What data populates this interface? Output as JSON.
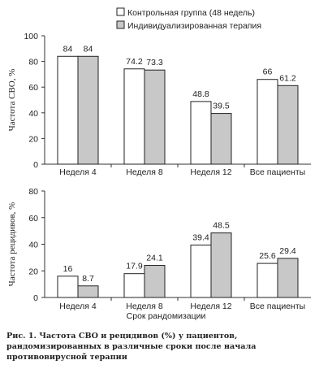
{
  "chart_data": [
    {
      "type": "bar",
      "categories": [
        "Неделя 4",
        "Неделя 8",
        "Неделя 12",
        "Все пациенты"
      ],
      "series": [
        {
          "name": "Контрольная группа (48 недель)",
          "values": [
            84,
            74.2,
            48.8,
            66
          ],
          "labels": [
            "84",
            "74.2",
            "48.8",
            "66"
          ],
          "color": "#ffffff"
        },
        {
          "name": "Индивидуализированная терапия",
          "values": [
            84,
            73.3,
            39.5,
            61.2
          ],
          "labels": [
            "84",
            "73.3",
            "39.5",
            "61.2"
          ],
          "color": "#c8c8c8"
        }
      ],
      "ylabel": "Частота СВО, %",
      "ylim": [
        0,
        100
      ],
      "yticks": [
        0,
        20,
        40,
        60,
        80,
        100
      ],
      "legend": "top-right"
    },
    {
      "type": "bar",
      "categories": [
        "Неделя 4",
        "Неделя 8",
        "Неделя 12",
        "Все пациенты"
      ],
      "series": [
        {
          "name": "Контрольная группа (48 недель)",
          "values": [
            16,
            17.9,
            39.4,
            25.6
          ],
          "labels": [
            "16",
            "17.9",
            "39.4",
            "25.6"
          ],
          "color": "#ffffff"
        },
        {
          "name": "Индивидуализированная терапия",
          "values": [
            8.7,
            24.1,
            48.5,
            29.4
          ],
          "labels": [
            "8.7",
            "24.1",
            "48.5",
            "29.4"
          ],
          "color": "#c8c8c8"
        }
      ],
      "ylabel": "Частота рецидивов, %",
      "xlabel": "Срок рандомизации",
      "ylim": [
        0,
        80
      ],
      "yticks": [
        0,
        20,
        40,
        60,
        80
      ]
    }
  ],
  "caption": "Рис. 1. Частота СВО и рецидивов (%) у пациентов, рандомизированных в различные сроки после начала противовирусной терапии"
}
